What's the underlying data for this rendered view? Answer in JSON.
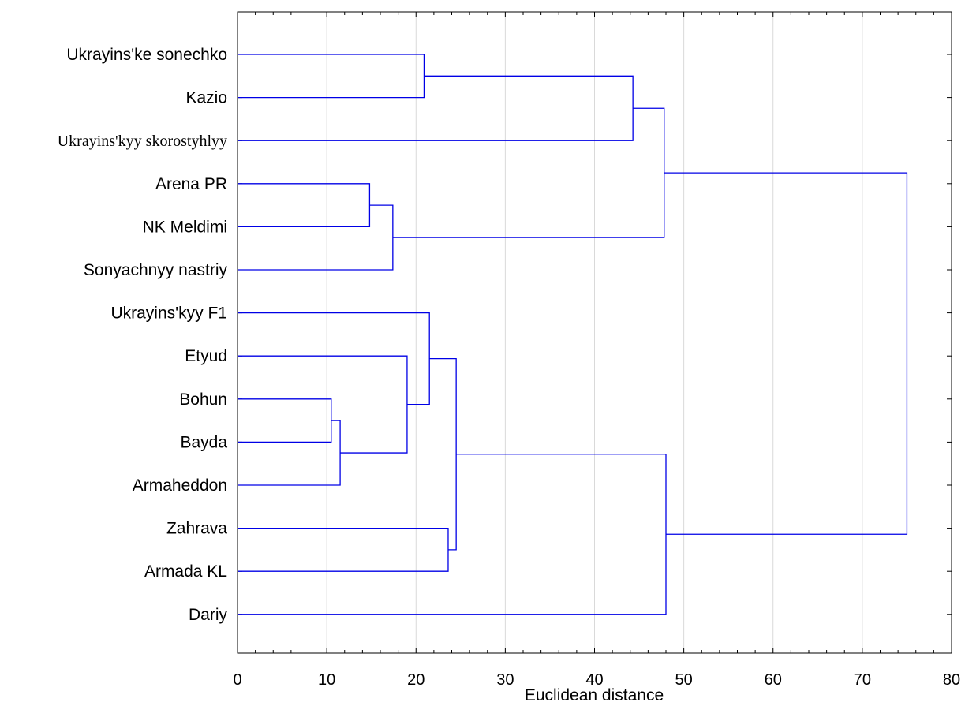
{
  "chart_data": {
    "type": "dendrogram",
    "orientation": "horizontal",
    "xlabel": "Euclidean distance",
    "xlim": [
      0,
      80
    ],
    "xticks": [
      "0",
      "10",
      "20",
      "30",
      "40",
      "50",
      "60",
      "70",
      "80"
    ],
    "grid": true,
    "line_color": "#0000e6",
    "leaves": [
      "Ukrayins'ke sonechko",
      "Kazio",
      "Ukrayins'kyy skorostyhlyy",
      "Arena PR",
      "NK Meldimi",
      "Sonyachnyy nastriy",
      "Ukrayins'kyy F1",
      "Etyud",
      "Bohun",
      "Bayda",
      "Armaheddon",
      "Zahrava",
      "Armada KL",
      "Dariy"
    ],
    "merges": [
      {
        "left": "Ukrayins'ke sonechko",
        "right": "Kazio",
        "height": 20.9
      },
      {
        "left": "Arena PR",
        "right": "NK Meldimi",
        "height": 14.8
      },
      {
        "left": "Bohun",
        "right": "Bayda",
        "height": 10.5
      },
      {
        "left": "Zahrava",
        "right": "Armada KL",
        "height": 23.6
      },
      {
        "left": "m3",
        "right": "Armaheddon",
        "height": 11.5
      },
      {
        "left": "m2",
        "right": "Sonyachnyy nastriy",
        "height": 17.4
      },
      {
        "left": "Etyud",
        "right": "m5",
        "height": 19.0
      },
      {
        "left": "Ukrayins'kyy F1",
        "right": "m7",
        "height": 21.5
      },
      {
        "left": "m8",
        "right": "m4",
        "height": 24.5
      },
      {
        "left": "m1",
        "right": "Ukrayins'kyy skorostyhlyy",
        "height": 44.3
      },
      {
        "left": "m10",
        "right": "m6",
        "height": 47.8
      },
      {
        "left": "m9",
        "right": "Dariy",
        "height": 48.0
      },
      {
        "left": "m11",
        "right": "m12",
        "height": 75.0
      }
    ]
  }
}
